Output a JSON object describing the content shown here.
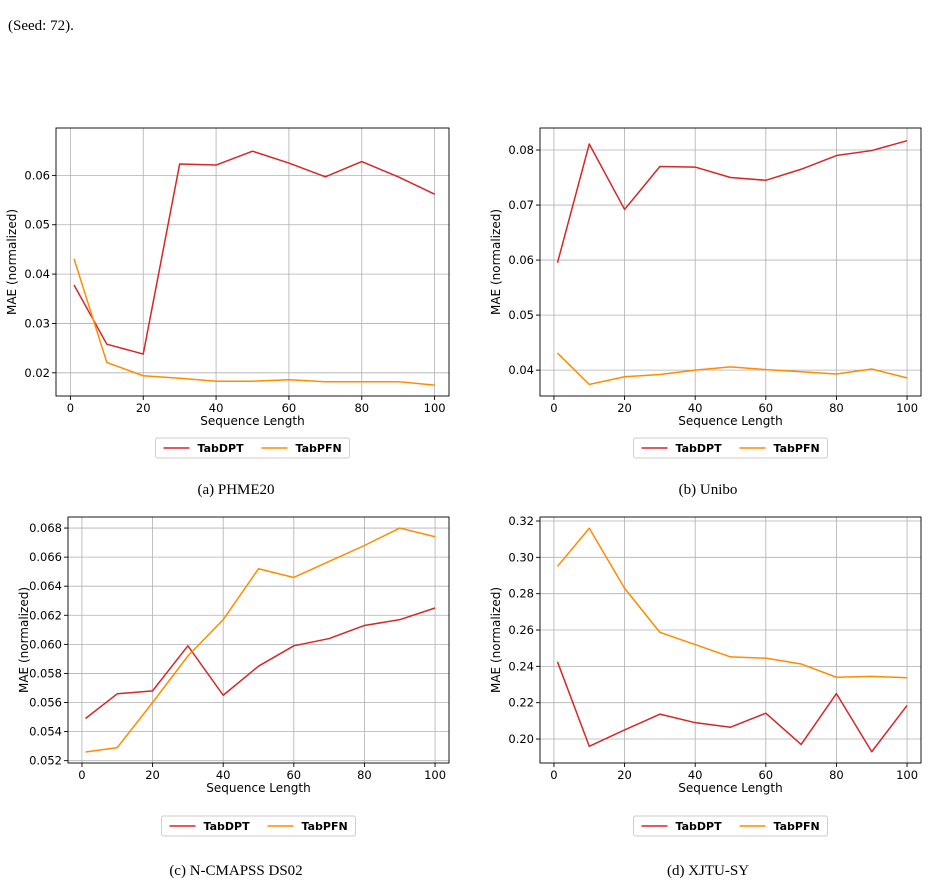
{
  "top_caption": "(Seed: 72).",
  "chart_data": [
    {
      "type": "line",
      "caption": "(a) PHME20",
      "xlabel": "Sequence Length",
      "ylabel": "MAE (normalized)",
      "x": [
        1,
        10,
        20,
        30,
        40,
        50,
        60,
        70,
        80,
        90,
        100
      ],
      "xticks": [
        0,
        20,
        40,
        60,
        80,
        100
      ],
      "xticklabels": [
        "0",
        "20",
        "40",
        "60",
        "80",
        "100"
      ],
      "xlim": [
        -3.95,
        103.95
      ],
      "yticks": [
        0.02,
        0.03,
        0.04,
        0.05,
        0.06
      ],
      "yticklabels": [
        "0.02",
        "0.03",
        "0.04",
        "0.05",
        "0.06"
      ],
      "ylim": [
        0.0153,
        0.0696
      ],
      "grid": true,
      "legend": "below",
      "series": [
        {
          "name": "TabDPT",
          "color": "#d62728",
          "values": [
            0.0378,
            0.0258,
            0.0238,
            0.0623,
            0.0621,
            0.0649,
            0.0625,
            0.0597,
            0.0628,
            0.0597,
            0.0562
          ]
        },
        {
          "name": "TabPFN",
          "color": "#ff8c00",
          "values": [
            0.0431,
            0.0221,
            0.0194,
            0.0189,
            0.0183,
            0.0183,
            0.0186,
            0.0182,
            0.0182,
            0.0182,
            0.0175
          ]
        }
      ]
    },
    {
      "type": "line",
      "caption": "(b) Unibo",
      "xlabel": "Sequence Length",
      "ylabel": "MAE (normalized)",
      "x": [
        1,
        10,
        20,
        30,
        40,
        50,
        60,
        70,
        80,
        90,
        100
      ],
      "xticks": [
        0,
        20,
        40,
        60,
        80,
        100
      ],
      "xticklabels": [
        "0",
        "20",
        "40",
        "60",
        "80",
        "100"
      ],
      "xlim": [
        -3.95,
        103.95
      ],
      "yticks": [
        0.04,
        0.05,
        0.06,
        0.07,
        0.08
      ],
      "yticklabels": [
        "0.04",
        "0.05",
        "0.06",
        "0.07",
        "0.08"
      ],
      "ylim": [
        0.0353,
        0.084
      ],
      "grid": true,
      "legend": "below",
      "series": [
        {
          "name": "TabDPT",
          "color": "#d62728",
          "values": [
            0.0595,
            0.0811,
            0.0692,
            0.077,
            0.0769,
            0.075,
            0.0745,
            0.0765,
            0.079,
            0.0799,
            0.0817
          ]
        },
        {
          "name": "TabPFN",
          "color": "#ff8c00",
          "values": [
            0.0431,
            0.0374,
            0.0388,
            0.0392,
            0.04,
            0.0406,
            0.0401,
            0.0397,
            0.0393,
            0.0402,
            0.0386
          ]
        }
      ]
    },
    {
      "type": "line",
      "caption": "(c) N-CMAPSS DS02",
      "xlabel": "Sequence Length",
      "ylabel": "MAE (normalized)",
      "x": [
        1,
        10,
        20,
        30,
        40,
        50,
        60,
        70,
        80,
        90,
        100
      ],
      "xticks": [
        0,
        20,
        40,
        60,
        80,
        100
      ],
      "xticklabels": [
        "0",
        "20",
        "40",
        "60",
        "80",
        "100"
      ],
      "xlim": [
        -3.95,
        103.95
      ],
      "yticks": [
        0.052,
        0.054,
        0.056,
        0.058,
        0.06,
        0.062,
        0.064,
        0.066,
        0.068
      ],
      "yticklabels": [
        "0.052",
        "0.054",
        "0.056",
        "0.058",
        "0.060",
        "0.062",
        "0.064",
        "0.066",
        "0.068"
      ],
      "ylim": [
        0.05184,
        0.06876
      ],
      "grid": true,
      "legend": "below",
      "series": [
        {
          "name": "TabDPT",
          "color": "#d62728",
          "values": [
            0.0549,
            0.0566,
            0.0568,
            0.0599,
            0.0565,
            0.0585,
            0.0599,
            0.0604,
            0.0613,
            0.0617,
            0.0625
          ]
        },
        {
          "name": "TabPFN",
          "color": "#ff8c00",
          "values": [
            0.0526,
            0.0529,
            0.056,
            0.0592,
            0.0617,
            0.0652,
            0.0646,
            0.0657,
            0.0668,
            0.068,
            0.0674
          ]
        }
      ]
    },
    {
      "type": "line",
      "caption": "(d) XJTU-SY",
      "xlabel": "Sequence Length",
      "ylabel": "MAE (normalized)",
      "x": [
        1,
        10,
        20,
        30,
        40,
        50,
        60,
        70,
        80,
        90,
        100
      ],
      "xticks": [
        0,
        20,
        40,
        60,
        80,
        100
      ],
      "xticklabels": [
        "0",
        "20",
        "40",
        "60",
        "80",
        "100"
      ],
      "xlim": [
        -3.95,
        103.95
      ],
      "yticks": [
        0.2,
        0.22,
        0.24,
        0.26,
        0.28,
        0.3,
        0.32
      ],
      "yticklabels": [
        "0.20",
        "0.22",
        "0.24",
        "0.26",
        "0.28",
        "0.30",
        "0.32"
      ],
      "ylim": [
        0.1868,
        0.3222
      ],
      "grid": true,
      "legend": "below",
      "series": [
        {
          "name": "TabDPT",
          "color": "#d62728",
          "values": [
            0.2425,
            0.196,
            0.205,
            0.2137,
            0.209,
            0.2065,
            0.2142,
            0.197,
            0.225,
            0.193,
            0.2185
          ]
        },
        {
          "name": "TabPFN",
          "color": "#ff8c00",
          "values": [
            0.295,
            0.316,
            0.283,
            0.2587,
            0.252,
            0.2452,
            0.2445,
            0.2413,
            0.234,
            0.2345,
            0.2337
          ]
        }
      ]
    }
  ]
}
